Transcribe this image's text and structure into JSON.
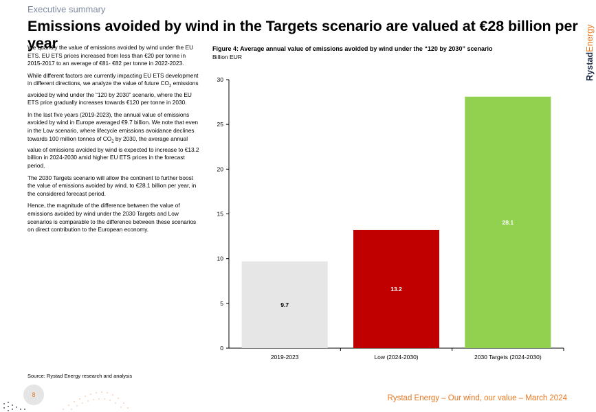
{
  "page": {
    "section": "Executive summary",
    "headline": "Emissions avoided by wind in the Targets scenario are valued at €28 billion per year",
    "brand": {
      "part1": "Rystad",
      "part2": "Energy"
    },
    "body": {
      "p1": "We quantify the value of emissions avoided by wind under the EU ETS. EU ETS prices increased from less than €20 per tonne in 2015-2017 to an average of €81- €82 per tonne in 2022-2023.",
      "p2_a": "While different factors are currently impacting EU ETS development in different directions, we analyze the value of future CO",
      "p2_sub": "2",
      "p2_b": " emissions avoided by wind under the “120 by 2030” scenario, where the EU ETS price gradually increases towards €120 per tonne in 2030.",
      "p3_a": "In the last five years (2019-2023), the annual value of emissions avoided by wind in Europe averaged €9.7 billion. We note that even in the Low scenario, where lifecycle emissions avoidance declines towards 100 million tonnes of CO",
      "p3_sub": "2",
      "p3_b": " by 2030, the average annual value of emissions avoided by wind is expected to increase to €13.2 billion in 2024-2030 amid higher EU ETS prices in the forecast period.",
      "p4": "The 2030 Targets scenario will allow the continent to further boost the value of emissions avoided by wind, to €28.1 billion per year, in the considered forecast period.",
      "p5": "Hence, the magnitude of the difference between the value of emissions avoided by wind under the 2030 Targets and Low scenarios is comparable to the difference between these scenarios on direct contribution to the European economy."
    },
    "source": "Source: Rystad Energy research and analysis",
    "page_number": "8",
    "footer": "Rystad Energy – Our wind, our value – March 2024"
  },
  "chart_data": {
    "type": "bar",
    "title": "Figure 4: Average annual value of emissions avoided by wind under the “120 by 2030” scenario",
    "subtitle": "Billion EUR",
    "xlabel": "",
    "ylabel": "",
    "categories": [
      "2019-2023",
      "Low (2024-2030)",
      "2030 Targets (2024-2030)"
    ],
    "values": [
      9.7,
      13.2,
      28.1
    ],
    "data_labels": [
      "9.7",
      "13.2",
      "28.1"
    ],
    "colors": [
      "#e6e6e6",
      "#c00000",
      "#92d050"
    ],
    "label_colors": [
      "#000000",
      "#ffffff",
      "#ffffff"
    ],
    "ylim": [
      0,
      30
    ],
    "yticks": [
      0,
      5,
      10,
      15,
      20,
      25,
      30
    ],
    "ytick_labels": [
      "0",
      "5",
      "10",
      "15",
      "20",
      "25",
      "30"
    ],
    "grid": false,
    "legend": "none"
  }
}
